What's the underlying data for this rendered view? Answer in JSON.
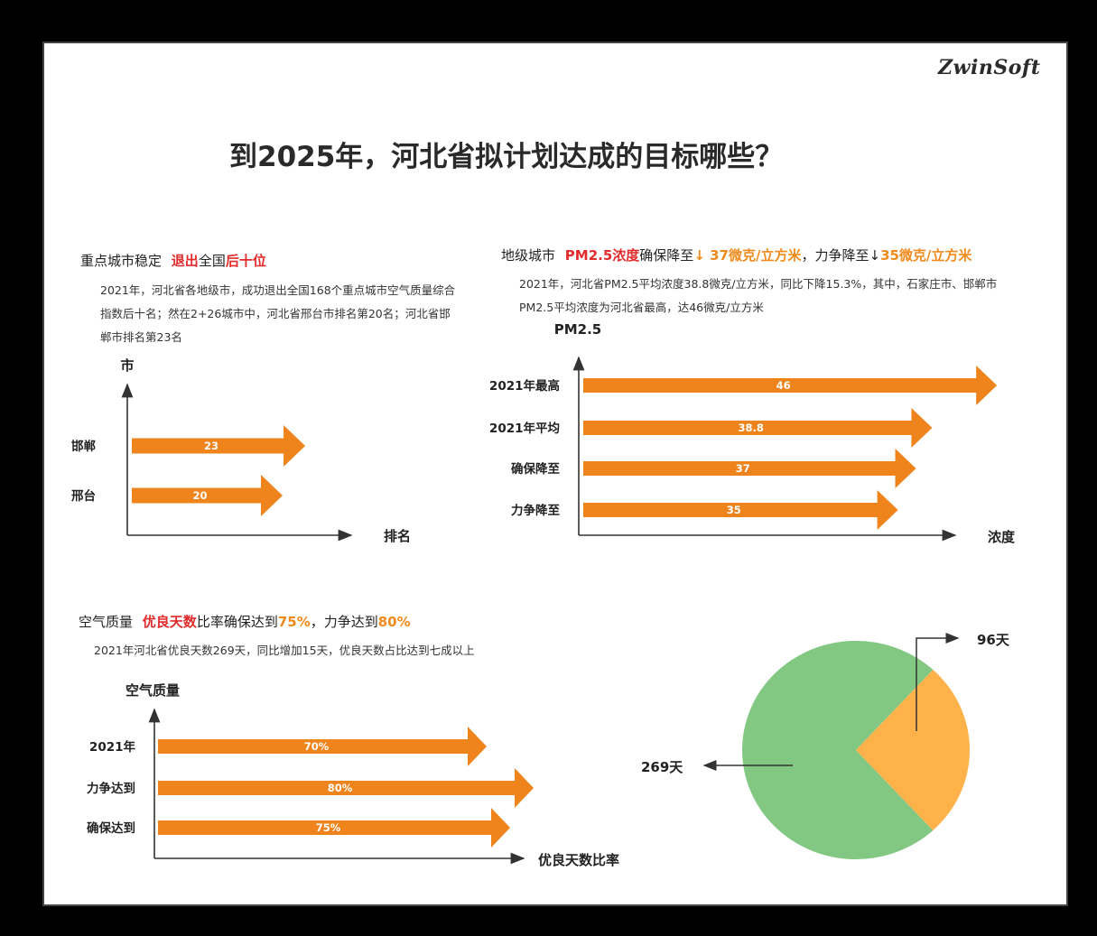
{
  "logo": "ZwinSoft",
  "title": "到2025年，河北省拟计划达成的目标哪些？",
  "section1": {
    "h_part1": "重点城市稳定",
    "h_red": "退出",
    "h_part2": "全国",
    "h_red2": "后十位",
    "desc": "2021年，河北省各地级市，成功退出全国168个重点城市空气质量综合指数后十名；然在2+26城市中，河北省邢台市排名第20名；河北省邯郸市排名第23名"
  },
  "section2": {
    "h_part1": "地级城市",
    "h_red": "PM2.5浓度",
    "h_part2": "确保降至",
    "h_org1": "↓ 37微克/立方米",
    "h_part3": "，力争降至",
    "h_arrow": "↓",
    "h_org2": "35微克/立方米",
    "desc": "2021年，河北省PM2.5平均浓度38.8微克/立方米，同比下降15.3%，其中，石家庄市、邯郸市PM2.5平均浓度为河北省最高，达46微克/立方米"
  },
  "section3": {
    "h_part1": "空气质量",
    "h_red": "优良天数",
    "h_part2": "比率确保达到",
    "h_org1": "75%",
    "h_part3": "，力争达到",
    "h_org2": "80%",
    "desc": "2021年河北省优良天数269天，同比增加15天，优良天数占比达到七成以上"
  },
  "chart_data": [
    {
      "type": "bar",
      "orientation": "horizontal",
      "ylabel": "市",
      "xlabel": "排名",
      "categories": [
        "邯郸",
        "邢台"
      ],
      "values": [
        23,
        20
      ],
      "value_labels": [
        "23",
        "20"
      ],
      "color": "#f0841c"
    },
    {
      "type": "bar",
      "orientation": "horizontal",
      "ylabel": "PM2.5",
      "xlabel": "浓度",
      "categories": [
        "2021年最高",
        "2021年平均",
        "确保降至",
        "力争降至"
      ],
      "values": [
        46,
        38.8,
        37,
        35
      ],
      "value_labels": [
        "46",
        "38.8",
        "37",
        "35"
      ],
      "color": "#f0841c"
    },
    {
      "type": "bar",
      "orientation": "horizontal",
      "ylabel": "空气质量",
      "xlabel": "优良天数比率",
      "categories": [
        "2021年",
        "力争达到",
        "确保达到"
      ],
      "values": [
        70,
        80,
        75
      ],
      "value_labels": [
        "70%",
        "80%",
        "75%"
      ],
      "color": "#f0841c"
    },
    {
      "type": "pie",
      "slices": [
        {
          "label": "269天",
          "value": 269,
          "color": "#82c882"
        },
        {
          "label": "96天",
          "value": 96,
          "color": "#ffb24a"
        }
      ]
    }
  ]
}
